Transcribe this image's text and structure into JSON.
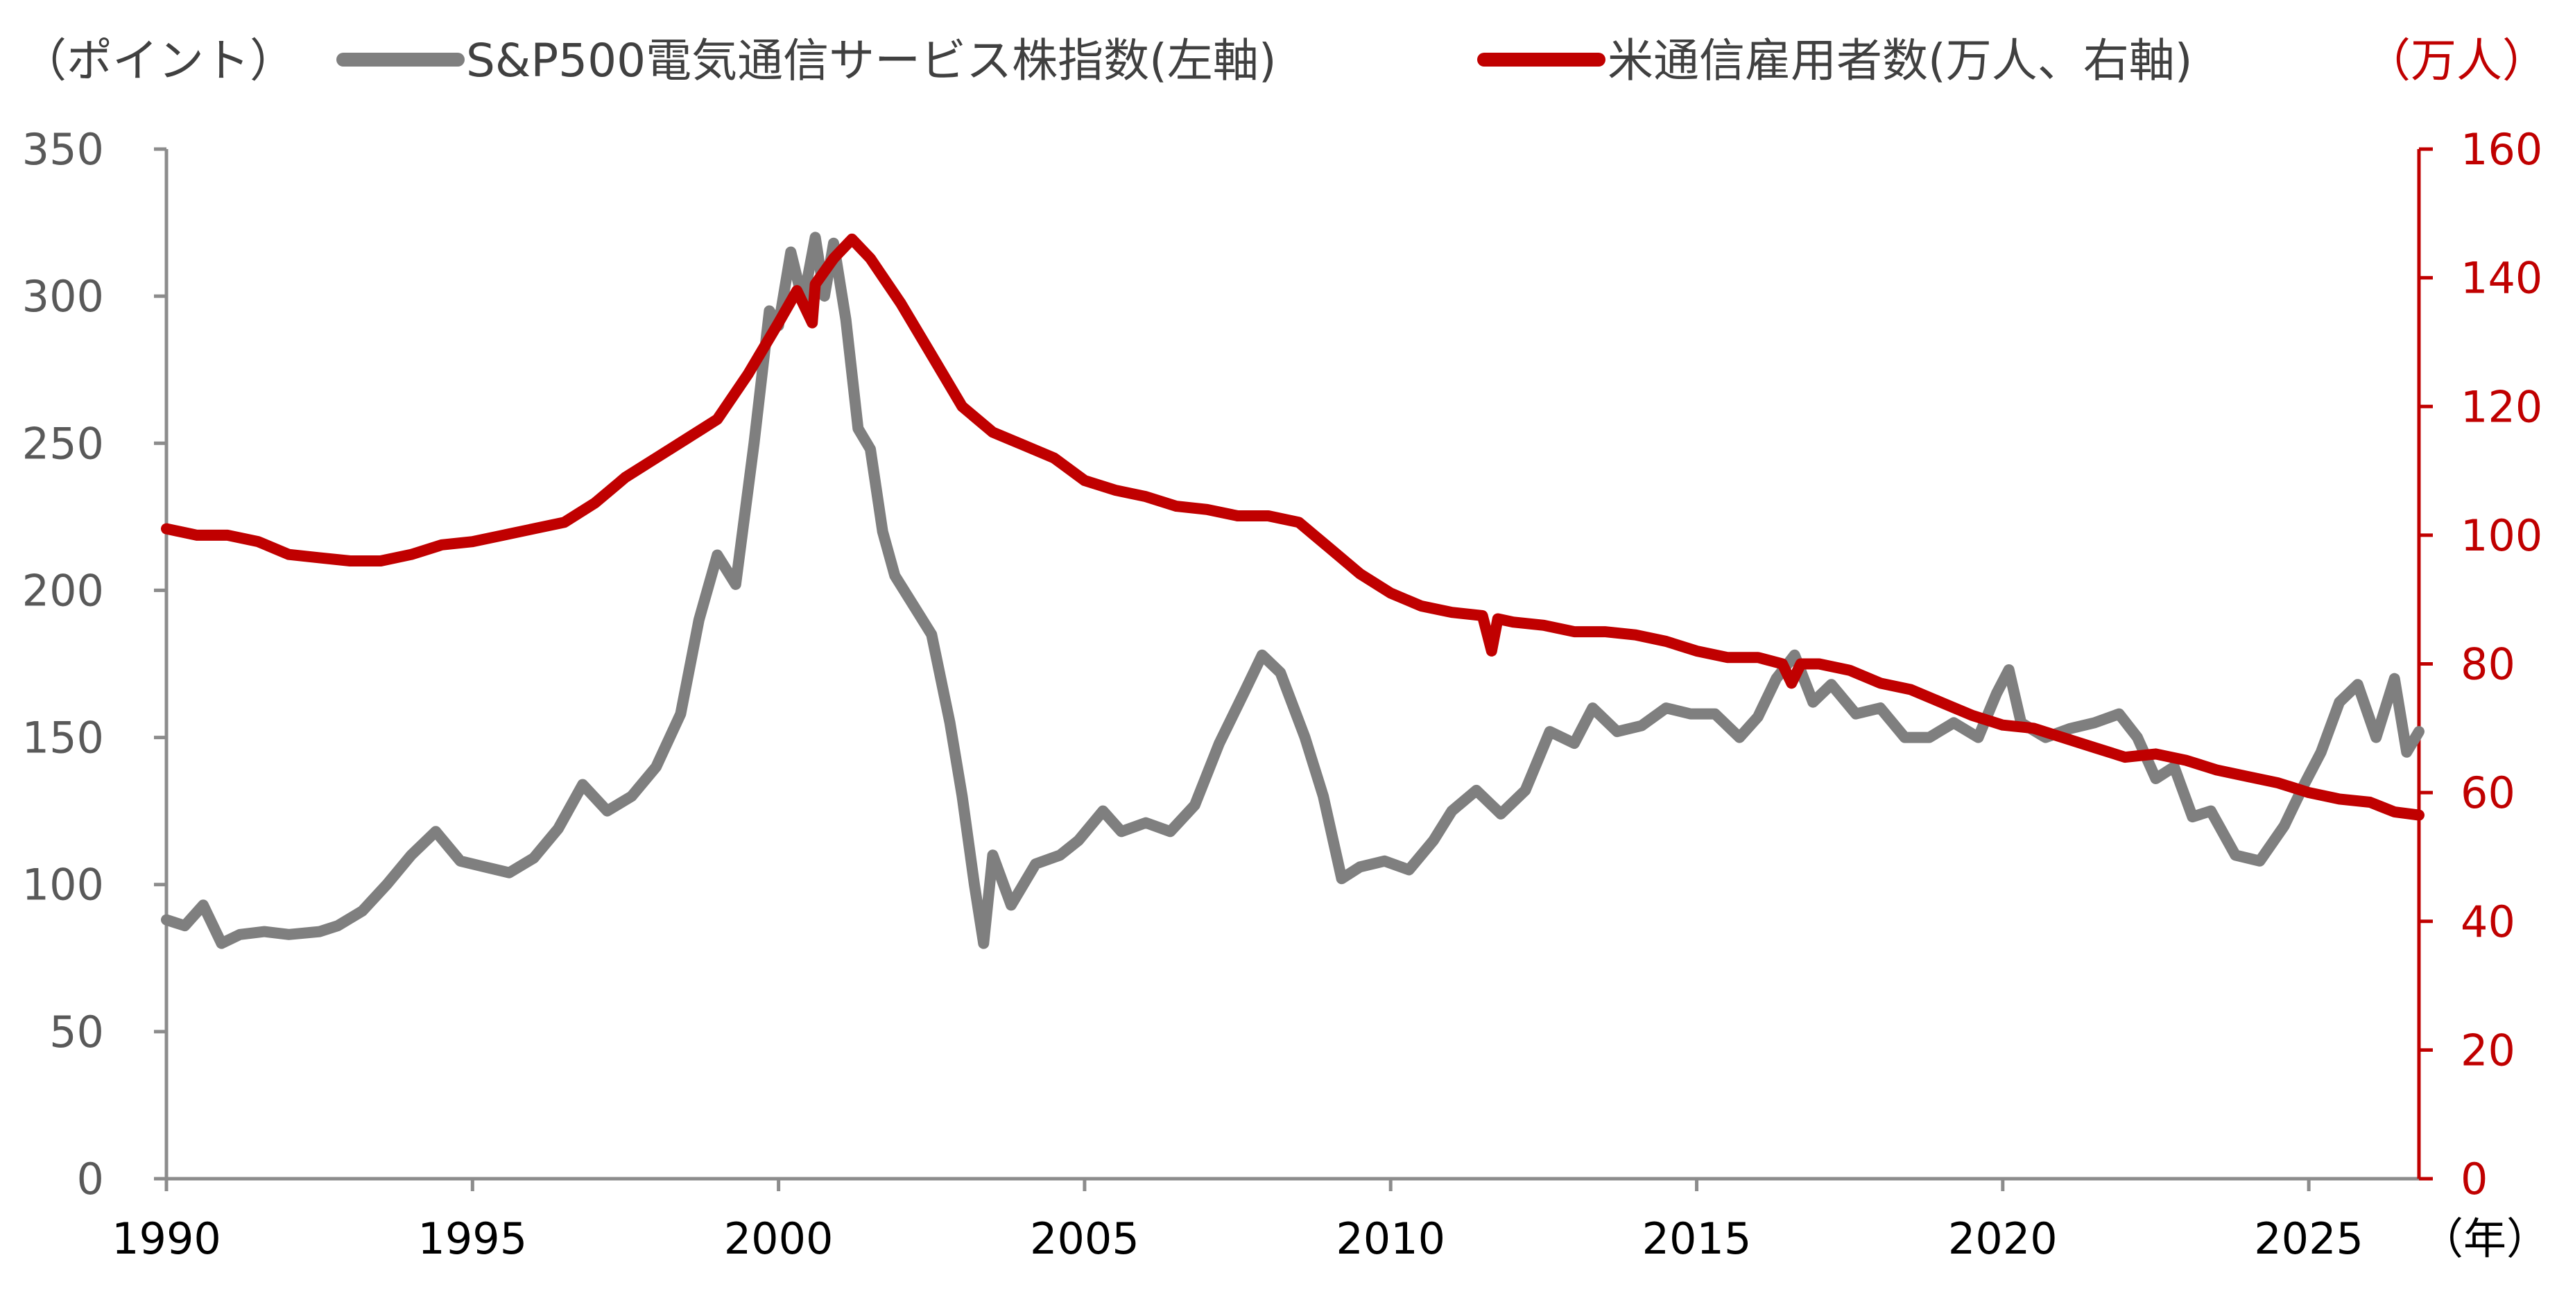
{
  "chart_data": {
    "type": "line",
    "x_range": [
      1990,
      2026.8
    ],
    "x_ticks": [
      "1990",
      "1995",
      "2000",
      "2005",
      "2010",
      "2015",
      "2020",
      "2025"
    ],
    "x_unit": "（年）",
    "y_left": {
      "label": "（ポイント）",
      "range": [
        0,
        350
      ],
      "ticks": [
        "0",
        "50",
        "100",
        "150",
        "200",
        "250",
        "300",
        "350"
      ]
    },
    "y_right": {
      "label": "（万人）",
      "range": [
        0,
        160
      ],
      "ticks": [
        "0",
        "20",
        "40",
        "60",
        "80",
        "100",
        "120",
        "140",
        "160"
      ]
    },
    "grid": false,
    "legend_placement": "top",
    "series": [
      {
        "name": "S&P500電気通信サービス株指数(左軸)",
        "axis": "left",
        "color": "#7f7f7f",
        "points": [
          [
            1990.0,
            88
          ],
          [
            1990.3,
            86
          ],
          [
            1990.6,
            93
          ],
          [
            1990.9,
            80
          ],
          [
            1991.2,
            83
          ],
          [
            1991.6,
            84
          ],
          [
            1992.0,
            83
          ],
          [
            1992.5,
            84
          ],
          [
            1992.8,
            86
          ],
          [
            1993.2,
            91
          ],
          [
            1993.6,
            100
          ],
          [
            1994.0,
            110
          ],
          [
            1994.4,
            118
          ],
          [
            1994.8,
            108
          ],
          [
            1995.2,
            106
          ],
          [
            1995.6,
            104
          ],
          [
            1996.0,
            109
          ],
          [
            1996.4,
            119
          ],
          [
            1996.8,
            134
          ],
          [
            1997.2,
            125
          ],
          [
            1997.6,
            130
          ],
          [
            1998.0,
            140
          ],
          [
            1998.4,
            158
          ],
          [
            1998.7,
            190
          ],
          [
            1999.0,
            212
          ],
          [
            1999.3,
            202
          ],
          [
            1999.6,
            250
          ],
          [
            1999.85,
            295
          ],
          [
            2000.0,
            290
          ],
          [
            2000.2,
            315
          ],
          [
            2000.4,
            298
          ],
          [
            2000.6,
            320
          ],
          [
            2000.75,
            300
          ],
          [
            2000.9,
            318
          ],
          [
            2001.1,
            292
          ],
          [
            2001.3,
            255
          ],
          [
            2001.5,
            248
          ],
          [
            2001.7,
            220
          ],
          [
            2001.9,
            205
          ],
          [
            2002.2,
            195
          ],
          [
            2002.5,
            185
          ],
          [
            2002.8,
            155
          ],
          [
            2003.0,
            130
          ],
          [
            2003.2,
            100
          ],
          [
            2003.35,
            80
          ],
          [
            2003.5,
            110
          ],
          [
            2003.8,
            93
          ],
          [
            2004.2,
            107
          ],
          [
            2004.6,
            110
          ],
          [
            2004.9,
            115
          ],
          [
            2005.3,
            125
          ],
          [
            2005.6,
            118
          ],
          [
            2006.0,
            121
          ],
          [
            2006.4,
            118
          ],
          [
            2006.8,
            127
          ],
          [
            2007.2,
            148
          ],
          [
            2007.6,
            165
          ],
          [
            2007.9,
            178
          ],
          [
            2008.2,
            172
          ],
          [
            2008.6,
            150
          ],
          [
            2008.9,
            130
          ],
          [
            2009.2,
            102
          ],
          [
            2009.5,
            106
          ],
          [
            2009.9,
            108
          ],
          [
            2010.3,
            105
          ],
          [
            2010.7,
            115
          ],
          [
            2011.0,
            125
          ],
          [
            2011.4,
            132
          ],
          [
            2011.8,
            124
          ],
          [
            2012.2,
            132
          ],
          [
            2012.6,
            152
          ],
          [
            2013.0,
            148
          ],
          [
            2013.3,
            160
          ],
          [
            2013.7,
            152
          ],
          [
            2014.1,
            154
          ],
          [
            2014.5,
            160
          ],
          [
            2014.9,
            158
          ],
          [
            2015.3,
            158
          ],
          [
            2015.7,
            150
          ],
          [
            2016.0,
            157
          ],
          [
            2016.3,
            170
          ],
          [
            2016.6,
            178
          ],
          [
            2016.9,
            162
          ],
          [
            2017.2,
            168
          ],
          [
            2017.6,
            158
          ],
          [
            2018.0,
            160
          ],
          [
            2018.4,
            150
          ],
          [
            2018.8,
            150
          ],
          [
            2019.2,
            155
          ],
          [
            2019.6,
            150
          ],
          [
            2019.9,
            165
          ],
          [
            2020.1,
            173
          ],
          [
            2020.3,
            155
          ],
          [
            2020.7,
            150
          ],
          [
            2021.1,
            153
          ],
          [
            2021.5,
            155
          ],
          [
            2021.9,
            158
          ],
          [
            2022.2,
            150
          ],
          [
            2022.5,
            136
          ],
          [
            2022.8,
            140
          ],
          [
            2023.1,
            123
          ],
          [
            2023.4,
            125
          ],
          [
            2023.8,
            110
          ],
          [
            2024.2,
            108
          ],
          [
            2024.6,
            120
          ],
          [
            2024.9,
            133
          ],
          [
            2025.2,
            145
          ],
          [
            2025.5,
            162
          ],
          [
            2025.8,
            168
          ],
          [
            2026.1,
            150
          ],
          [
            2026.4,
            170
          ],
          [
            2026.6,
            145
          ],
          [
            2026.8,
            152
          ]
        ]
      },
      {
        "name": "米通信雇用者数(万人、右軸)",
        "axis": "right",
        "color": "#c00000",
        "points": [
          [
            1990.0,
            101
          ],
          [
            1990.5,
            100
          ],
          [
            1991.0,
            100
          ],
          [
            1991.5,
            99
          ],
          [
            1992.0,
            97
          ],
          [
            1992.5,
            96.5
          ],
          [
            1993.0,
            96
          ],
          [
            1993.5,
            96
          ],
          [
            1994.0,
            97
          ],
          [
            1994.5,
            98.5
          ],
          [
            1995.0,
            99
          ],
          [
            1995.5,
            100
          ],
          [
            1996.0,
            101
          ],
          [
            1996.5,
            102
          ],
          [
            1997.0,
            105
          ],
          [
            1997.5,
            109
          ],
          [
            1998.0,
            112
          ],
          [
            1998.5,
            115
          ],
          [
            1999.0,
            118
          ],
          [
            1999.5,
            125
          ],
          [
            2000.0,
            133
          ],
          [
            2000.3,
            138
          ],
          [
            2000.55,
            133
          ],
          [
            2000.6,
            139
          ],
          [
            2000.9,
            143
          ],
          [
            2001.2,
            146
          ],
          [
            2001.5,
            143
          ],
          [
            2002.0,
            136
          ],
          [
            2002.5,
            128
          ],
          [
            2003.0,
            120
          ],
          [
            2003.5,
            116
          ],
          [
            2004.0,
            114
          ],
          [
            2004.5,
            112
          ],
          [
            2005.0,
            108.5
          ],
          [
            2005.5,
            107
          ],
          [
            2006.0,
            106
          ],
          [
            2006.5,
            104.5
          ],
          [
            2007.0,
            104
          ],
          [
            2007.5,
            103
          ],
          [
            2008.0,
            103
          ],
          [
            2008.5,
            102
          ],
          [
            2009.0,
            98
          ],
          [
            2009.5,
            94
          ],
          [
            2010.0,
            91
          ],
          [
            2010.5,
            89
          ],
          [
            2011.0,
            88
          ],
          [
            2011.5,
            87.5
          ],
          [
            2011.65,
            82
          ],
          [
            2011.75,
            87
          ],
          [
            2012.0,
            86.5
          ],
          [
            2012.5,
            86
          ],
          [
            2013.0,
            85
          ],
          [
            2013.5,
            85
          ],
          [
            2014.0,
            84.5
          ],
          [
            2014.5,
            83.5
          ],
          [
            2015.0,
            82
          ],
          [
            2015.5,
            81
          ],
          [
            2016.0,
            81
          ],
          [
            2016.4,
            80
          ],
          [
            2016.55,
            77
          ],
          [
            2016.7,
            80
          ],
          [
            2017.0,
            80
          ],
          [
            2017.5,
            79
          ],
          [
            2018.0,
            77
          ],
          [
            2018.5,
            76
          ],
          [
            2019.0,
            74
          ],
          [
            2019.5,
            72
          ],
          [
            2020.0,
            70.5
          ],
          [
            2020.5,
            70
          ],
          [
            2021.0,
            68.5
          ],
          [
            2021.5,
            67
          ],
          [
            2022.0,
            65.5
          ],
          [
            2022.5,
            66
          ],
          [
            2023.0,
            65
          ],
          [
            2023.5,
            63.5
          ],
          [
            2024.0,
            62.5
          ],
          [
            2024.5,
            61.5
          ],
          [
            2025.0,
            60
          ],
          [
            2025.5,
            59
          ],
          [
            2026.0,
            58.5
          ],
          [
            2026.4,
            57
          ],
          [
            2026.8,
            56.5
          ]
        ]
      }
    ]
  }
}
